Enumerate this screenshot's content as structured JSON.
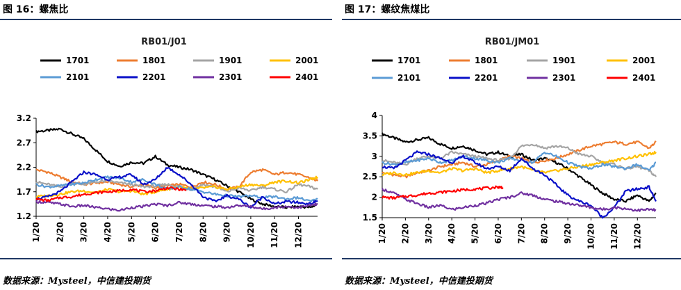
{
  "colors": {
    "rule": "#1f3864",
    "1701": "#000000",
    "1801": "#ed7d31",
    "1901": "#a5a5a5",
    "2001": "#ffc000",
    "2101": "#5b9bd5",
    "2201": "#0a10c8",
    "2301": "#7030a0",
    "2401": "#ff0000"
  },
  "panels": [
    {
      "figure_title": "图 16：螺焦比",
      "source": "数据来源：Mysteel，中信建投期货"
    },
    {
      "figure_title": "图 17：螺纹焦煤比",
      "source": "数据来源：Mysteel，中信建投期货"
    }
  ],
  "chart_data": [
    {
      "type": "line",
      "title": "RB01/J01",
      "xlabel": "",
      "ylabel": "",
      "legend_placement": "top",
      "grid": false,
      "x_ticks": [
        "1/20",
        "2/20",
        "3/20",
        "4/20",
        "5/20",
        "6/20",
        "7/20",
        "8/20",
        "9/20",
        "10/20",
        "11/20",
        "12/20"
      ],
      "x_range": [
        1,
        12.8
      ],
      "ylim": [
        1.2,
        3.2
      ],
      "y_ticks": [
        "1.2",
        "1.7",
        "2.2",
        "2.7",
        "3.2"
      ],
      "series": [
        {
          "name": "1701",
          "x": [
            1,
            1.5,
            2,
            2.5,
            3,
            3.5,
            4,
            4.5,
            5,
            5.5,
            6,
            6.5,
            7,
            7.5,
            8,
            8.5,
            9,
            9.5,
            10,
            10.5,
            11,
            11.5,
            12,
            12.5,
            12.8
          ],
          "y": [
            2.93,
            2.95,
            2.98,
            2.88,
            2.78,
            2.55,
            2.32,
            2.22,
            2.3,
            2.28,
            2.42,
            2.25,
            2.2,
            2.15,
            2.05,
            1.95,
            1.82,
            1.7,
            1.55,
            1.45,
            1.4,
            1.38,
            1.4,
            1.38,
            1.45
          ]
        },
        {
          "name": "1801",
          "x": [
            1,
            1.5,
            2,
            2.5,
            3,
            3.5,
            4,
            4.5,
            5,
            5.5,
            6,
            6.5,
            7,
            7.5,
            8,
            8.5,
            9,
            9.5,
            10,
            10.5,
            11,
            11.5,
            12,
            12.5,
            12.8
          ],
          "y": [
            2.15,
            2.1,
            2.0,
            1.9,
            1.85,
            1.88,
            1.9,
            1.85,
            1.8,
            1.85,
            1.78,
            1.82,
            1.85,
            1.8,
            1.9,
            1.85,
            1.75,
            1.8,
            2.1,
            2.15,
            2.05,
            2.1,
            2.05,
            1.98,
            1.92
          ]
        },
        {
          "name": "1901",
          "x": [
            1,
            1.5,
            2,
            2.5,
            3,
            3.5,
            4,
            4.5,
            5,
            5.5,
            6,
            6.5,
            7,
            7.5,
            8,
            8.5,
            9,
            9.5,
            10,
            10.5,
            11,
            11.5,
            12,
            12.5,
            12.8
          ],
          "y": [
            1.9,
            1.85,
            1.8,
            1.88,
            1.85,
            1.9,
            1.92,
            1.88,
            1.85,
            1.8,
            1.82,
            1.85,
            1.8,
            1.75,
            1.85,
            1.8,
            1.7,
            1.78,
            1.72,
            1.8,
            1.75,
            1.7,
            1.85,
            1.8,
            1.75
          ]
        },
        {
          "name": "2001",
          "x": [
            1,
            1.5,
            2,
            2.5,
            3,
            3.5,
            4,
            4.5,
            5,
            5.5,
            6,
            6.5,
            7,
            7.5,
            8,
            8.5,
            9,
            9.5,
            10,
            10.5,
            11,
            11.5,
            12,
            12.5,
            12.8
          ],
          "y": [
            1.6,
            1.62,
            1.65,
            1.7,
            1.72,
            1.68,
            1.75,
            1.7,
            1.72,
            1.65,
            1.7,
            1.75,
            1.8,
            1.75,
            1.78,
            1.8,
            1.75,
            1.8,
            1.85,
            1.82,
            1.9,
            1.92,
            1.88,
            1.95,
            2.0
          ]
        },
        {
          "name": "2101",
          "x": [
            1,
            1.5,
            2,
            2.5,
            3,
            3.5,
            4,
            4.5,
            5,
            5.5,
            6,
            6.5,
            7,
            7.5,
            8,
            8.5,
            9,
            9.5,
            10,
            10.5,
            11,
            11.5,
            12,
            12.5,
            12.8
          ],
          "y": [
            1.85,
            1.8,
            1.82,
            1.85,
            1.88,
            1.95,
            2.0,
            1.98,
            1.9,
            1.95,
            1.85,
            1.75,
            1.8,
            1.75,
            1.7,
            1.65,
            1.62,
            1.6,
            1.62,
            1.58,
            1.6,
            1.55,
            1.58,
            1.5,
            1.55
          ]
        },
        {
          "name": "2201",
          "x": [
            1,
            1.5,
            2,
            2.5,
            3,
            3.5,
            4,
            4.5,
            5,
            5.5,
            6,
            6.5,
            7,
            7.5,
            8,
            8.5,
            9,
            9.5,
            10,
            10.5,
            11,
            11.5,
            12,
            12.5,
            12.8
          ],
          "y": [
            1.55,
            1.6,
            1.7,
            1.9,
            2.1,
            2.05,
            1.95,
            2.0,
            2.05,
            1.85,
            1.95,
            2.2,
            2.05,
            1.85,
            1.6,
            1.5,
            1.62,
            1.55,
            1.38,
            1.6,
            1.45,
            1.5,
            1.48,
            1.45,
            1.52
          ]
        },
        {
          "name": "2301",
          "x": [
            1,
            1.5,
            2,
            2.5,
            3,
            3.5,
            4,
            4.5,
            5,
            5.5,
            6,
            6.5,
            7,
            7.5,
            8,
            8.5,
            9,
            9.5,
            10,
            10.5,
            11,
            11.5,
            12,
            12.5,
            12.8
          ],
          "y": [
            1.5,
            1.48,
            1.45,
            1.4,
            1.42,
            1.38,
            1.35,
            1.32,
            1.38,
            1.4,
            1.45,
            1.42,
            1.48,
            1.45,
            1.42,
            1.4,
            1.38,
            1.42,
            1.4,
            1.35,
            1.38,
            1.4,
            1.38,
            1.42,
            1.45
          ]
        },
        {
          "name": "2401",
          "x": [
            1,
            1.5,
            2,
            2.5,
            3,
            3.5,
            4,
            4.5,
            5,
            5.5,
            6,
            6.5,
            7,
            7.3
          ],
          "y": [
            1.55,
            1.52,
            1.58,
            1.6,
            1.65,
            1.68,
            1.7,
            1.72,
            1.75,
            1.7,
            1.72,
            1.78,
            1.75,
            1.73
          ]
        }
      ]
    },
    {
      "type": "line",
      "title": "RB01/JM01",
      "xlabel": "",
      "ylabel": "",
      "legend_placement": "top",
      "grid": false,
      "x_ticks": [
        "1/20",
        "2/20",
        "3/20",
        "4/20",
        "5/20",
        "6/20",
        "7/20",
        "8/20",
        "9/20",
        "10/20",
        "11/20",
        "12/20"
      ],
      "x_range": [
        1,
        12.8
      ],
      "ylim": [
        1.5,
        4
      ],
      "y_ticks": [
        "1.5",
        "2",
        "2.5",
        "3",
        "3.5",
        "4"
      ],
      "series": [
        {
          "name": "1701",
          "x": [
            1,
            1.5,
            2,
            2.5,
            3,
            3.5,
            4,
            4.5,
            5,
            5.5,
            6,
            6.5,
            7,
            7.5,
            8,
            8.5,
            9,
            9.5,
            10,
            10.5,
            11,
            11.5,
            12,
            12.5,
            12.8
          ],
          "y": [
            3.55,
            3.45,
            3.35,
            3.4,
            3.45,
            3.3,
            3.2,
            3.25,
            3.15,
            3.05,
            3.1,
            3.0,
            3.05,
            2.9,
            2.95,
            2.85,
            2.7,
            2.5,
            2.3,
            2.1,
            1.95,
            1.9,
            2.05,
            1.9,
            2.1
          ]
        },
        {
          "name": "1801",
          "x": [
            1,
            1.5,
            2,
            2.5,
            3,
            3.5,
            4,
            4.5,
            5,
            5.5,
            6,
            6.5,
            7,
            7.5,
            8,
            8.5,
            9,
            9.5,
            10,
            10.5,
            11,
            11.5,
            12,
            12.5,
            12.8
          ],
          "y": [
            2.6,
            2.55,
            2.5,
            2.6,
            2.65,
            2.75,
            2.8,
            2.85,
            2.75,
            2.8,
            2.9,
            3.0,
            2.95,
            2.85,
            2.9,
            2.95,
            3.05,
            3.15,
            3.25,
            3.3,
            3.35,
            3.3,
            3.35,
            3.2,
            3.35
          ]
        },
        {
          "name": "1901",
          "x": [
            1,
            1.5,
            2,
            2.5,
            3,
            3.5,
            4,
            4.5,
            5,
            5.5,
            6,
            6.5,
            7,
            7.5,
            8,
            8.5,
            9,
            9.5,
            10,
            10.5,
            11,
            11.5,
            12,
            12.5,
            12.8
          ],
          "y": [
            2.9,
            2.85,
            2.8,
            2.95,
            3.0,
            2.95,
            3.1,
            3.05,
            3.0,
            2.95,
            2.9,
            2.95,
            3.25,
            3.3,
            3.2,
            3.25,
            3.2,
            3.05,
            3.0,
            2.85,
            2.8,
            2.7,
            2.75,
            2.65,
            2.5
          ]
        },
        {
          "name": "2001",
          "x": [
            1,
            1.5,
            2,
            2.5,
            3,
            3.5,
            4,
            4.5,
            5,
            5.5,
            6,
            6.5,
            7,
            7.5,
            8,
            8.5,
            9,
            9.5,
            10,
            10.5,
            11,
            11.5,
            12,
            12.5,
            12.8
          ],
          "y": [
            2.55,
            2.6,
            2.55,
            2.6,
            2.65,
            2.6,
            2.7,
            2.65,
            2.7,
            2.6,
            2.65,
            2.7,
            2.75,
            2.65,
            2.6,
            2.65,
            2.7,
            2.75,
            2.8,
            2.85,
            2.9,
            2.95,
            3.0,
            3.05,
            3.1
          ]
        },
        {
          "name": "2101",
          "x": [
            1,
            1.5,
            2,
            2.5,
            3,
            3.5,
            4,
            4.5,
            5,
            5.5,
            6,
            6.5,
            7,
            7.5,
            8,
            8.5,
            9,
            9.5,
            10,
            10.5,
            11,
            11.5,
            12,
            12.5,
            12.8
          ],
          "y": [
            2.85,
            2.8,
            2.85,
            2.9,
            2.95,
            2.85,
            2.9,
            3.0,
            2.95,
            2.9,
            2.85,
            2.95,
            2.9,
            2.85,
            3.1,
            3.0,
            2.85,
            2.75,
            2.7,
            2.8,
            2.75,
            2.7,
            2.8,
            2.65,
            2.85
          ]
        },
        {
          "name": "2201",
          "x": [
            1,
            1.5,
            2,
            2.5,
            3,
            3.5,
            4,
            4.5,
            5,
            5.5,
            6,
            6.5,
            7,
            7.5,
            8,
            8.5,
            9,
            9.5,
            10,
            10.5,
            11,
            11.5,
            12,
            12.5,
            12.8
          ],
          "y": [
            2.75,
            2.7,
            2.9,
            3.1,
            3.05,
            2.95,
            2.85,
            3.0,
            2.85,
            2.7,
            2.75,
            2.65,
            2.95,
            2.7,
            2.55,
            2.3,
            2.05,
            1.9,
            1.8,
            1.5,
            1.75,
            2.15,
            2.2,
            2.25,
            1.9
          ]
        },
        {
          "name": "2301",
          "x": [
            1,
            1.5,
            2,
            2.5,
            3,
            3.5,
            4,
            4.5,
            5,
            5.5,
            6,
            6.5,
            7,
            7.5,
            8,
            8.5,
            9,
            9.5,
            10,
            10.5,
            11,
            11.5,
            12,
            12.5,
            12.8
          ],
          "y": [
            2.2,
            2.1,
            1.95,
            1.85,
            1.75,
            1.8,
            1.7,
            1.75,
            1.8,
            1.85,
            1.95,
            2.0,
            2.1,
            2.05,
            1.95,
            1.9,
            1.85,
            1.8,
            1.75,
            1.7,
            1.75,
            1.72,
            1.68,
            1.7,
            1.68
          ]
        },
        {
          "name": "2401",
          "x": [
            1,
            1.5,
            2,
            2.5,
            3,
            3.5,
            4,
            4.5,
            5,
            5.5,
            6,
            6.2
          ],
          "y": [
            2.0,
            1.98,
            2.02,
            2.05,
            2.1,
            2.12,
            2.15,
            2.18,
            2.2,
            2.22,
            2.25,
            2.24
          ]
        }
      ]
    }
  ]
}
